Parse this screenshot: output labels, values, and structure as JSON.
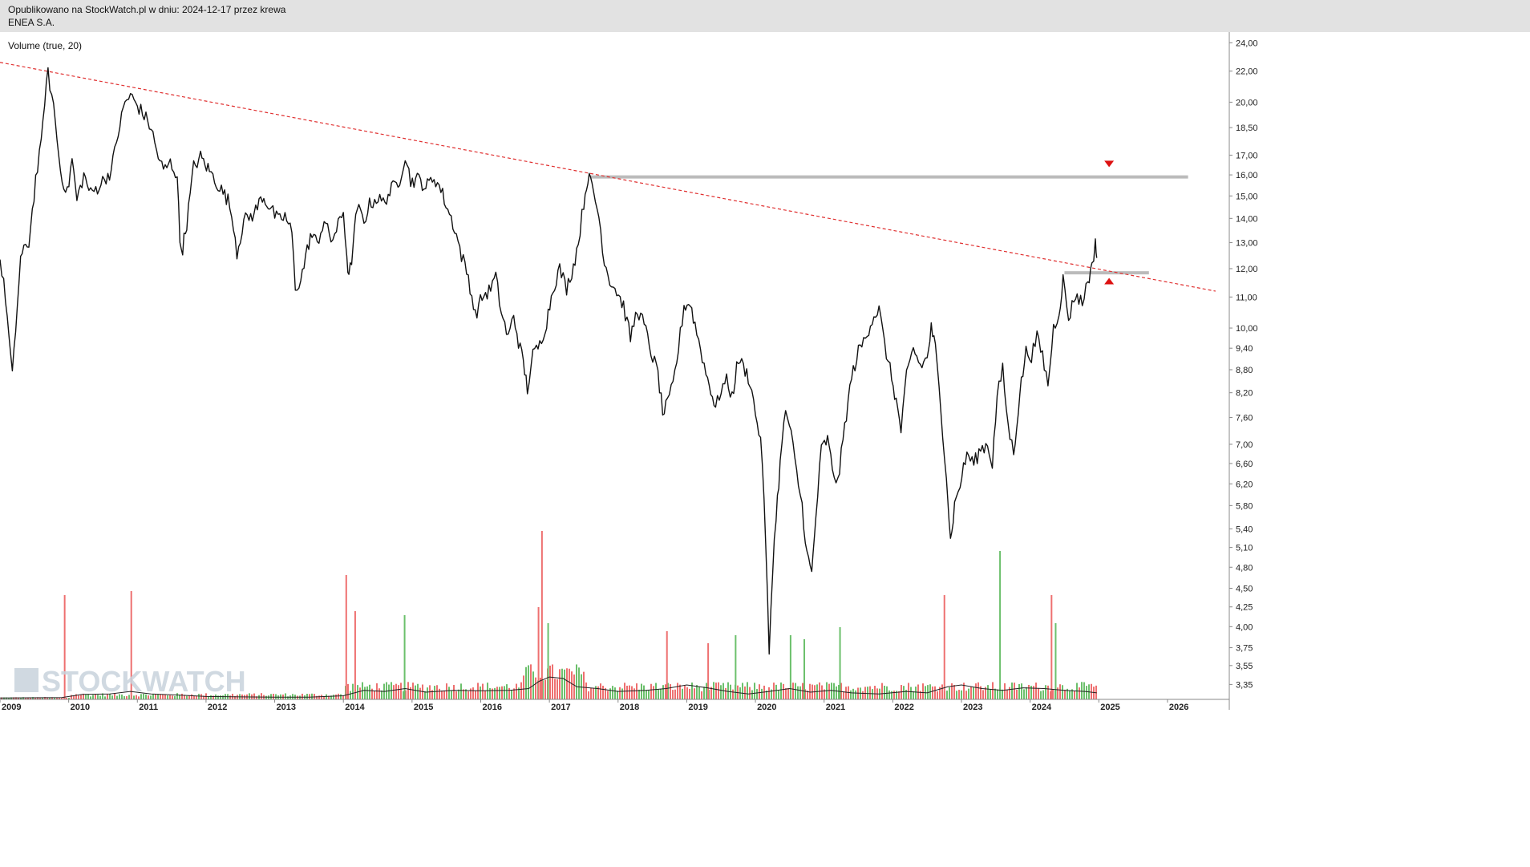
{
  "header": {
    "line1": "Opublikowano na StockWatch.pl w dniu: 2024-12-17 przez krewa",
    "line2": "ENEA S.A."
  },
  "indicator_label": "Volume (true, 20)",
  "watermark": "STOCKWATCH",
  "colors": {
    "price": "#111111",
    "trendline": "#e03030",
    "level": "#bbbbbb",
    "marker": "#dd1111",
    "volume_up": "#6cc06c",
    "volume_down": "#ee7070",
    "volume_ma": "#222222",
    "header_bg": "#e2e2e2"
  },
  "chart_data": {
    "type": "line",
    "scale": "log",
    "x_tick_labels": [
      "2009",
      "2010",
      "2011",
      "2012",
      "2013",
      "2014",
      "2015",
      "2016",
      "2017",
      "2018",
      "2019",
      "2020",
      "2021",
      "2022",
      "2023",
      "2024",
      "2025",
      "2026"
    ],
    "y_tick_labels": [
      "24,00",
      "22,00",
      "20,00",
      "18,50",
      "17,00",
      "16,00",
      "15,00",
      "14,00",
      "13,00",
      "12,00",
      "11,00",
      "10,00",
      "9,40",
      "8,80",
      "8,20",
      "7,60",
      "7,00",
      "6,60",
      "6,20",
      "5,80",
      "5,40",
      "5,10",
      "4,80",
      "4,50",
      "4,25",
      "4,00",
      "3,75",
      "3,55",
      "3,35"
    ],
    "y_ticks": [
      24.0,
      22.0,
      20.0,
      18.5,
      17.0,
      16.0,
      15.0,
      14.0,
      13.0,
      12.0,
      11.0,
      10.0,
      9.4,
      8.8,
      8.2,
      7.6,
      7.0,
      6.6,
      6.2,
      5.8,
      5.4,
      5.1,
      4.8,
      4.5,
      4.25,
      4.0,
      3.75,
      3.55,
      3.35
    ],
    "ylim": [
      3.2,
      24.8
    ],
    "xlim": [
      2009.0,
      2026.9
    ],
    "price_path": [
      [
        2009.0,
        12.3
      ],
      [
        2009.08,
        11.0
      ],
      [
        2009.18,
        8.6
      ],
      [
        2009.3,
        12.4
      ],
      [
        2009.42,
        13.0
      ],
      [
        2009.52,
        15.8
      ],
      [
        2009.6,
        17.5
      ],
      [
        2009.65,
        20.2
      ],
      [
        2009.7,
        21.8
      ],
      [
        2009.78,
        19.8
      ],
      [
        2009.88,
        16.2
      ],
      [
        2009.98,
        15.1
      ],
      [
        2010.05,
        16.8
      ],
      [
        2010.12,
        14.8
      ],
      [
        2010.22,
        16.0
      ],
      [
        2010.32,
        15.1
      ],
      [
        2010.42,
        15.4
      ],
      [
        2010.52,
        15.8
      ],
      [
        2010.62,
        16.2
      ],
      [
        2010.72,
        18.2
      ],
      [
        2010.82,
        20.0
      ],
      [
        2010.9,
        20.4
      ],
      [
        2011.0,
        19.8
      ],
      [
        2011.1,
        19.2
      ],
      [
        2011.2,
        18.5
      ],
      [
        2011.28,
        17.2
      ],
      [
        2011.38,
        16.2
      ],
      [
        2011.48,
        16.6
      ],
      [
        2011.58,
        16.0
      ],
      [
        2011.62,
        13.0
      ],
      [
        2011.66,
        12.8
      ],
      [
        2011.72,
        13.8
      ],
      [
        2011.82,
        16.4
      ],
      [
        2011.92,
        16.9
      ],
      [
        2012.05,
        16.2
      ],
      [
        2012.2,
        15.4
      ],
      [
        2012.32,
        14.8
      ],
      [
        2012.4,
        13.8
      ],
      [
        2012.45,
        12.6
      ],
      [
        2012.55,
        13.9
      ],
      [
        2012.7,
        14.2
      ],
      [
        2012.82,
        15.0
      ],
      [
        2012.95,
        14.4
      ],
      [
        2013.05,
        13.9
      ],
      [
        2013.15,
        14.1
      ],
      [
        2013.25,
        13.4
      ],
      [
        2013.3,
        11.3
      ],
      [
        2013.38,
        11.6
      ],
      [
        2013.45,
        12.4
      ],
      [
        2013.52,
        13.3
      ],
      [
        2013.62,
        13.0
      ],
      [
        2013.72,
        13.9
      ],
      [
        2013.82,
        13.1
      ],
      [
        2013.9,
        13.5
      ],
      [
        2014.0,
        14.3
      ],
      [
        2014.05,
        12.5
      ],
      [
        2014.08,
        11.6
      ],
      [
        2014.14,
        12.8
      ],
      [
        2014.2,
        14.5
      ],
      [
        2014.3,
        13.9
      ],
      [
        2014.38,
        14.6
      ],
      [
        2014.48,
        14.9
      ],
      [
        2014.58,
        14.7
      ],
      [
        2014.7,
        15.3
      ],
      [
        2014.82,
        15.8
      ],
      [
        2014.9,
        17.0
      ],
      [
        2014.98,
        15.7
      ],
      [
        2015.1,
        15.8
      ],
      [
        2015.2,
        15.4
      ],
      [
        2015.32,
        15.9
      ],
      [
        2015.42,
        15.3
      ],
      [
        2015.52,
        14.4
      ],
      [
        2015.62,
        13.6
      ],
      [
        2015.72,
        12.5
      ],
      [
        2015.82,
        11.7
      ],
      [
        2015.92,
        10.4
      ],
      [
        2016.02,
        11.0
      ],
      [
        2016.12,
        11.2
      ],
      [
        2016.22,
        11.7
      ],
      [
        2016.3,
        10.5
      ],
      [
        2016.4,
        9.7
      ],
      [
        2016.48,
        10.4
      ],
      [
        2016.55,
        9.6
      ],
      [
        2016.62,
        9.0
      ],
      [
        2016.68,
        8.3
      ],
      [
        2016.76,
        9.2
      ],
      [
        2016.86,
        9.5
      ],
      [
        2016.96,
        10.2
      ],
      [
        2017.05,
        11.3
      ],
      [
        2017.15,
        12.0
      ],
      [
        2017.25,
        11.3
      ],
      [
        2017.35,
        12.1
      ],
      [
        2017.42,
        13.0
      ],
      [
        2017.5,
        14.7
      ],
      [
        2017.56,
        15.9
      ],
      [
        2017.62,
        15.5
      ],
      [
        2017.72,
        14.1
      ],
      [
        2017.8,
        12.3
      ],
      [
        2017.88,
        11.6
      ],
      [
        2017.98,
        11.2
      ],
      [
        2018.08,
        10.7
      ],
      [
        2018.18,
        9.7
      ],
      [
        2018.28,
        10.6
      ],
      [
        2018.38,
        10.1
      ],
      [
        2018.48,
        9.3
      ],
      [
        2018.58,
        8.7
      ],
      [
        2018.65,
        7.7
      ],
      [
        2018.72,
        7.9
      ],
      [
        2018.8,
        8.4
      ],
      [
        2018.88,
        9.4
      ],
      [
        2018.96,
        10.7
      ],
      [
        2019.05,
        10.8
      ],
      [
        2019.12,
        10.1
      ],
      [
        2019.2,
        9.4
      ],
      [
        2019.28,
        8.7
      ],
      [
        2019.35,
        8.3
      ],
      [
        2019.42,
        7.8
      ],
      [
        2019.5,
        8.3
      ],
      [
        2019.58,
        8.5
      ],
      [
        2019.66,
        8.1
      ],
      [
        2019.75,
        9.1
      ],
      [
        2019.85,
        8.8
      ],
      [
        2019.92,
        8.5
      ],
      [
        2020.0,
        7.7
      ],
      [
        2020.05,
        7.3
      ],
      [
        2020.1,
        6.7
      ],
      [
        2020.15,
        5.1
      ],
      [
        2020.2,
        3.7
      ],
      [
        2020.25,
        4.8
      ],
      [
        2020.3,
        5.6
      ],
      [
        2020.36,
        6.6
      ],
      [
        2020.44,
        7.8
      ],
      [
        2020.52,
        7.2
      ],
      [
        2020.6,
        6.4
      ],
      [
        2020.68,
        5.8
      ],
      [
        2020.75,
        5.0
      ],
      [
        2020.82,
        4.7
      ],
      [
        2020.88,
        5.6
      ],
      [
        2020.96,
        6.9
      ],
      [
        2021.05,
        7.1
      ],
      [
        2021.12,
        6.5
      ],
      [
        2021.2,
        6.2
      ],
      [
        2021.3,
        7.4
      ],
      [
        2021.4,
        8.6
      ],
      [
        2021.5,
        9.3
      ],
      [
        2021.6,
        9.7
      ],
      [
        2021.7,
        10.3
      ],
      [
        2021.8,
        10.6
      ],
      [
        2021.88,
        9.5
      ],
      [
        2021.96,
        8.8
      ],
      [
        2022.05,
        8.0
      ],
      [
        2022.12,
        7.3
      ],
      [
        2022.2,
        8.6
      ],
      [
        2022.3,
        9.4
      ],
      [
        2022.4,
        8.9
      ],
      [
        2022.5,
        9.1
      ],
      [
        2022.56,
        10.0
      ],
      [
        2022.62,
        9.4
      ],
      [
        2022.7,
        7.8
      ],
      [
        2022.78,
        6.4
      ],
      [
        2022.84,
        5.2
      ],
      [
        2022.9,
        5.8
      ],
      [
        2022.98,
        6.2
      ],
      [
        2023.08,
        6.8
      ],
      [
        2023.18,
        6.6
      ],
      [
        2023.28,
        6.9
      ],
      [
        2023.38,
        7.0
      ],
      [
        2023.45,
        6.6
      ],
      [
        2023.52,
        8.1
      ],
      [
        2023.6,
        8.8
      ],
      [
        2023.68,
        7.4
      ],
      [
        2023.76,
        6.8
      ],
      [
        2023.85,
        8.2
      ],
      [
        2023.94,
        9.3
      ],
      [
        2024.02,
        9.2
      ],
      [
        2024.1,
        9.7
      ],
      [
        2024.18,
        9.2
      ],
      [
        2024.26,
        8.4
      ],
      [
        2024.34,
        10.0
      ],
      [
        2024.42,
        10.5
      ],
      [
        2024.48,
        11.6
      ],
      [
        2024.56,
        10.3
      ],
      [
        2024.66,
        11.1
      ],
      [
        2024.76,
        10.8
      ],
      [
        2024.84,
        11.6
      ],
      [
        2024.9,
        12.0
      ],
      [
        2024.95,
        13.1
      ],
      [
        2024.97,
        12.4
      ]
    ],
    "trendline": {
      "from": [
        2009.0,
        22.6
      ],
      "to": [
        2026.7,
        11.2
      ]
    },
    "levels": [
      {
        "value": 15.9,
        "x_from": 2017.6,
        "x_to": 2026.3
      },
      {
        "value": 11.85,
        "x_from": 2024.5,
        "x_to": 2025.73
      }
    ],
    "markers": [
      {
        "x": 2025.15,
        "value": 16.55,
        "direction": "down"
      },
      {
        "x": 2025.15,
        "value": 11.55,
        "direction": "up"
      }
    ],
    "volume_bars": [
      [
        2009.93,
        1.3,
        "down"
      ],
      [
        2010.9,
        1.35,
        "down"
      ],
      [
        2014.03,
        1.55,
        "down"
      ],
      [
        2014.16,
        1.1,
        "down"
      ],
      [
        2014.88,
        1.05,
        "up"
      ],
      [
        2016.88,
        2.1,
        "down"
      ],
      [
        2016.83,
        1.15,
        "down"
      ],
      [
        2016.97,
        0.95,
        "up"
      ],
      [
        2019.7,
        0.8,
        "up"
      ],
      [
        2020.5,
        0.8,
        "up"
      ],
      [
        2020.7,
        0.75,
        "up"
      ],
      [
        2021.22,
        0.9,
        "up"
      ],
      [
        2022.74,
        1.3,
        "down"
      ],
      [
        2023.55,
        1.85,
        "up"
      ],
      [
        2024.3,
        1.3,
        "down"
      ],
      [
        2024.36,
        0.95,
        "up"
      ],
      [
        2018.7,
        0.85,
        "down"
      ],
      [
        2019.3,
        0.7,
        "down"
      ]
    ],
    "volume_ma": [
      [
        2009.0,
        0.04
      ],
      [
        2009.9,
        0.05
      ],
      [
        2010.2,
        0.14
      ],
      [
        2010.6,
        0.15
      ],
      [
        2010.9,
        0.22
      ],
      [
        2011.2,
        0.15
      ],
      [
        2011.6,
        0.12
      ],
      [
        2012.0,
        0.08
      ],
      [
        2012.5,
        0.07
      ],
      [
        2013.0,
        0.06
      ],
      [
        2013.5,
        0.06
      ],
      [
        2014.0,
        0.1
      ],
      [
        2014.3,
        0.25
      ],
      [
        2014.6,
        0.22
      ],
      [
        2014.9,
        0.3
      ],
      [
        2015.2,
        0.2
      ],
      [
        2015.6,
        0.25
      ],
      [
        2016.0,
        0.24
      ],
      [
        2016.4,
        0.25
      ],
      [
        2016.7,
        0.3
      ],
      [
        2016.85,
        0.5
      ],
      [
        2017.0,
        0.62
      ],
      [
        2017.2,
        0.58
      ],
      [
        2017.4,
        0.35
      ],
      [
        2017.7,
        0.3
      ],
      [
        2018.0,
        0.22
      ],
      [
        2018.4,
        0.25
      ],
      [
        2018.7,
        0.3
      ],
      [
        2019.0,
        0.4
      ],
      [
        2019.3,
        0.32
      ],
      [
        2019.6,
        0.22
      ],
      [
        2019.9,
        0.15
      ],
      [
        2020.2,
        0.22
      ],
      [
        2020.5,
        0.3
      ],
      [
        2020.8,
        0.2
      ],
      [
        2021.1,
        0.25
      ],
      [
        2021.4,
        0.18
      ],
      [
        2021.8,
        0.15
      ],
      [
        2022.2,
        0.22
      ],
      [
        2022.5,
        0.18
      ],
      [
        2022.8,
        0.35
      ],
      [
        2023.0,
        0.4
      ],
      [
        2023.3,
        0.3
      ],
      [
        2023.6,
        0.25
      ],
      [
        2023.9,
        0.32
      ],
      [
        2024.2,
        0.3
      ],
      [
        2024.5,
        0.25
      ],
      [
        2024.8,
        0.22
      ],
      [
        2024.97,
        0.18
      ]
    ]
  }
}
